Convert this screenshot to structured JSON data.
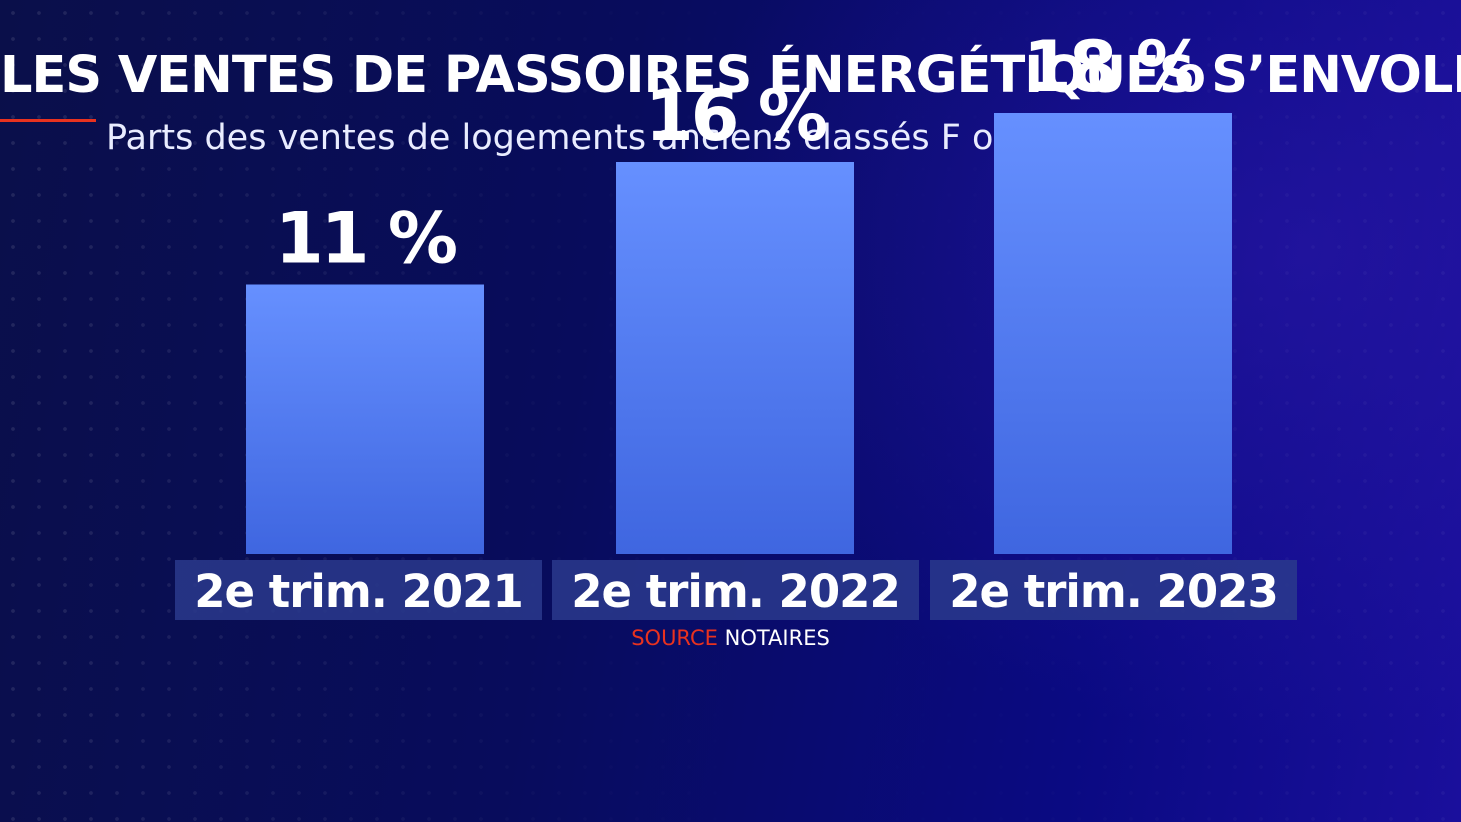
{
  "title": "LES VENTES DE PASSOIRES ÉNERGÉTIQUES S’ENVOLENT",
  "subtitle": "Parts des ventes de logements anciens classés F ou G",
  "source": {
    "label": "SOURCE",
    "value": "NOTAIRES"
  },
  "colors": {
    "accent": "#e8321f",
    "bar_top": "#6690ff",
    "bar_bottom": "#3f66e0",
    "label_bg": "#2a3a8c"
  },
  "chart_data": {
    "type": "bar",
    "categories": [
      "2e trim. 2021",
      "2e trim. 2022",
      "2e trim. 2023"
    ],
    "values": [
      11,
      16,
      18
    ],
    "value_labels": [
      "11 %",
      "16 %",
      "18 %"
    ],
    "unit": "%",
    "title": "LES VENTES DE PASSOIRES ÉNERGÉTIQUES S’ENVOLENT",
    "subtitle": "Parts des ventes de logements anciens classés F ou G",
    "xlabel": "",
    "ylabel": "",
    "grid": false,
    "legend": "none"
  }
}
